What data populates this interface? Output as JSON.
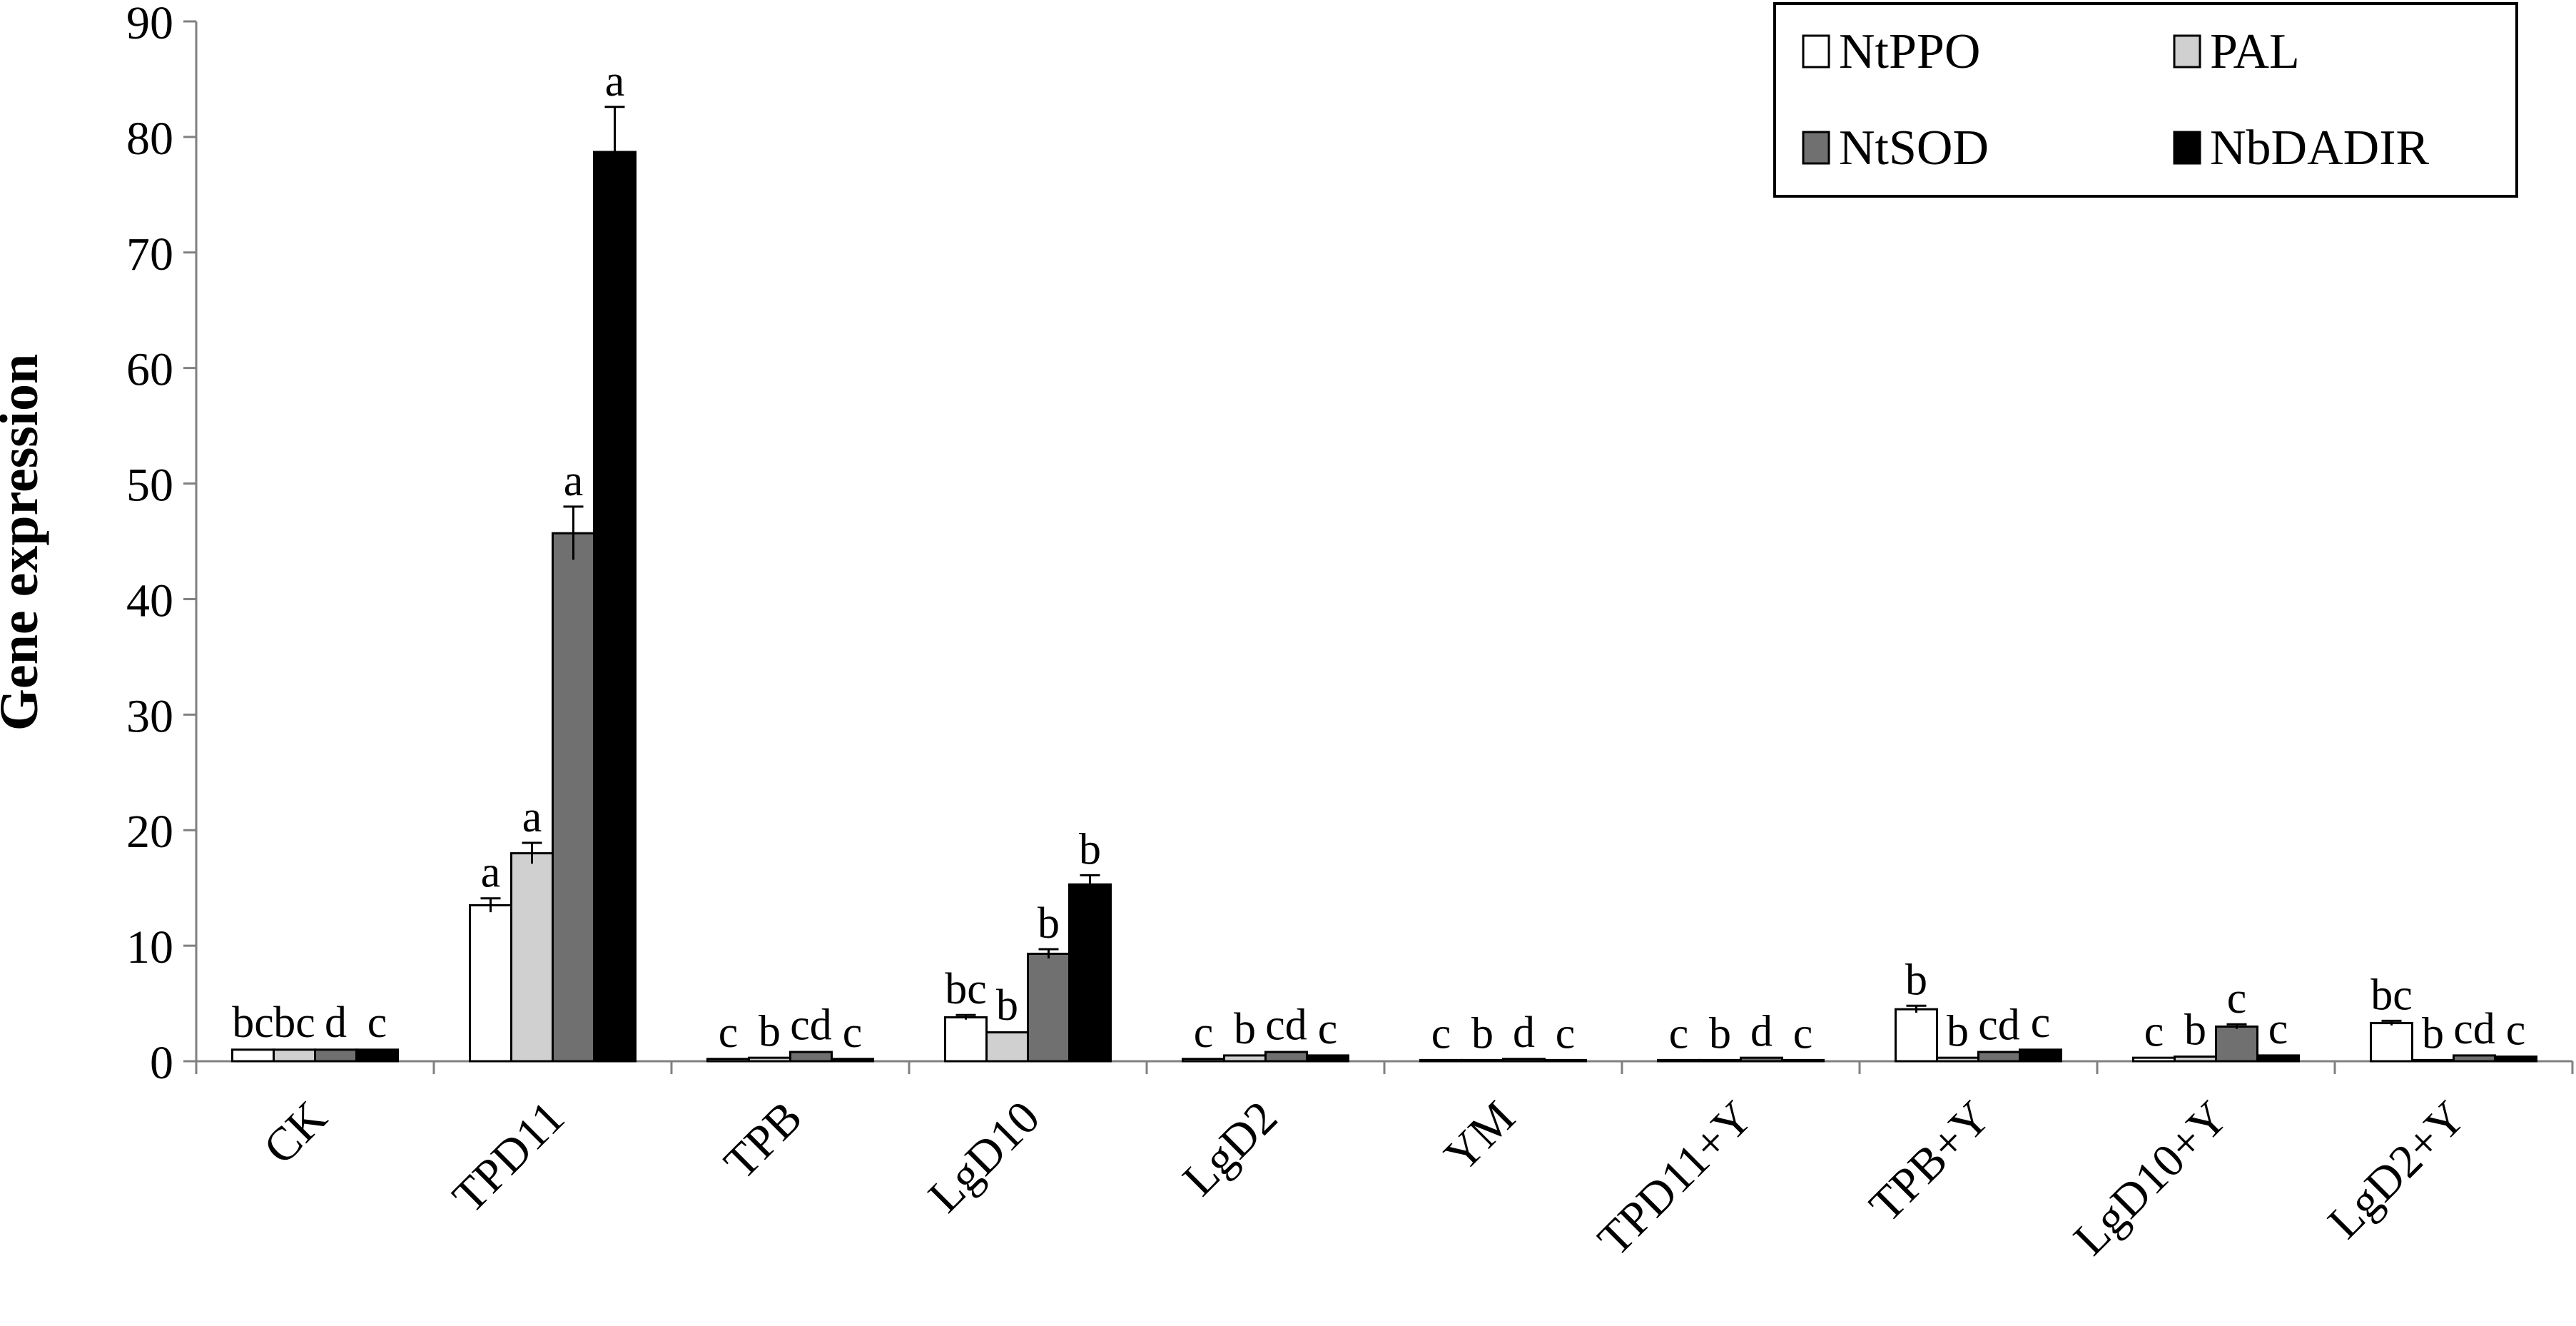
{
  "chart_data": {
    "type": "bar",
    "title": "",
    "xlabel": "",
    "ylabel": "Gene expression",
    "ylim": [
      0,
      90
    ],
    "yticks": [
      0,
      10,
      20,
      30,
      40,
      50,
      60,
      70,
      80,
      90
    ],
    "grid": false,
    "legend_position": "top-right",
    "categories": [
      "CK",
      "TPD11",
      "TPB",
      "LgD10",
      "LgD2",
      "YM",
      "TPD11+Y",
      "TPB+Y",
      "LgD10+Y",
      "LgD2+Y"
    ],
    "series": [
      {
        "name": "NtPPO",
        "color": "#ffffff",
        "values": [
          1.0,
          13.5,
          0.2,
          3.8,
          0.2,
          0.1,
          0.1,
          4.5,
          0.3,
          3.3
        ],
        "errors": [
          0.1,
          0.6,
          0.05,
          0.2,
          0.05,
          0.05,
          0.05,
          0.3,
          0.05,
          0.2
        ],
        "letters": [
          "bc",
          "a",
          "c",
          "bc",
          "c",
          "c",
          "c",
          "b",
          "c",
          "bc"
        ]
      },
      {
        "name": "PAL",
        "color": "#d0d0d0",
        "values": [
          1.0,
          18.0,
          0.3,
          2.5,
          0.5,
          0.1,
          0.1,
          0.3,
          0.4,
          0.1
        ],
        "errors": [
          0.1,
          0.9,
          0.05,
          0.1,
          0.05,
          0.05,
          0.05,
          0.05,
          0.05,
          0.05
        ],
        "letters": [
          "bc",
          "a",
          "b",
          "b",
          "b",
          "b",
          "b",
          "b",
          "b",
          "b"
        ]
      },
      {
        "name": "NtSOD",
        "color": "#707070",
        "values": [
          1.0,
          45.7,
          0.8,
          9.3,
          0.8,
          0.2,
          0.3,
          0.8,
          3.0,
          0.5
        ],
        "errors": [
          0.1,
          2.3,
          0.1,
          0.4,
          0.1,
          0.05,
          0.05,
          0.1,
          0.2,
          0.05
        ],
        "letters": [
          "d",
          "a",
          "cd",
          "b",
          "cd",
          "d",
          "d",
          "cd",
          "c",
          "cd"
        ]
      },
      {
        "name": "NbDADIR",
        "color": "#000000",
        "values": [
          1.0,
          78.7,
          0.2,
          15.3,
          0.5,
          0.1,
          0.1,
          1.0,
          0.5,
          0.4
        ],
        "errors": [
          0.1,
          3.9,
          0.05,
          0.8,
          0.05,
          0.05,
          0.05,
          0.1,
          0.05,
          0.05
        ],
        "letters": [
          "c",
          "a",
          "c",
          "b",
          "c",
          "c",
          "c",
          "c",
          "c",
          "c"
        ]
      }
    ]
  }
}
